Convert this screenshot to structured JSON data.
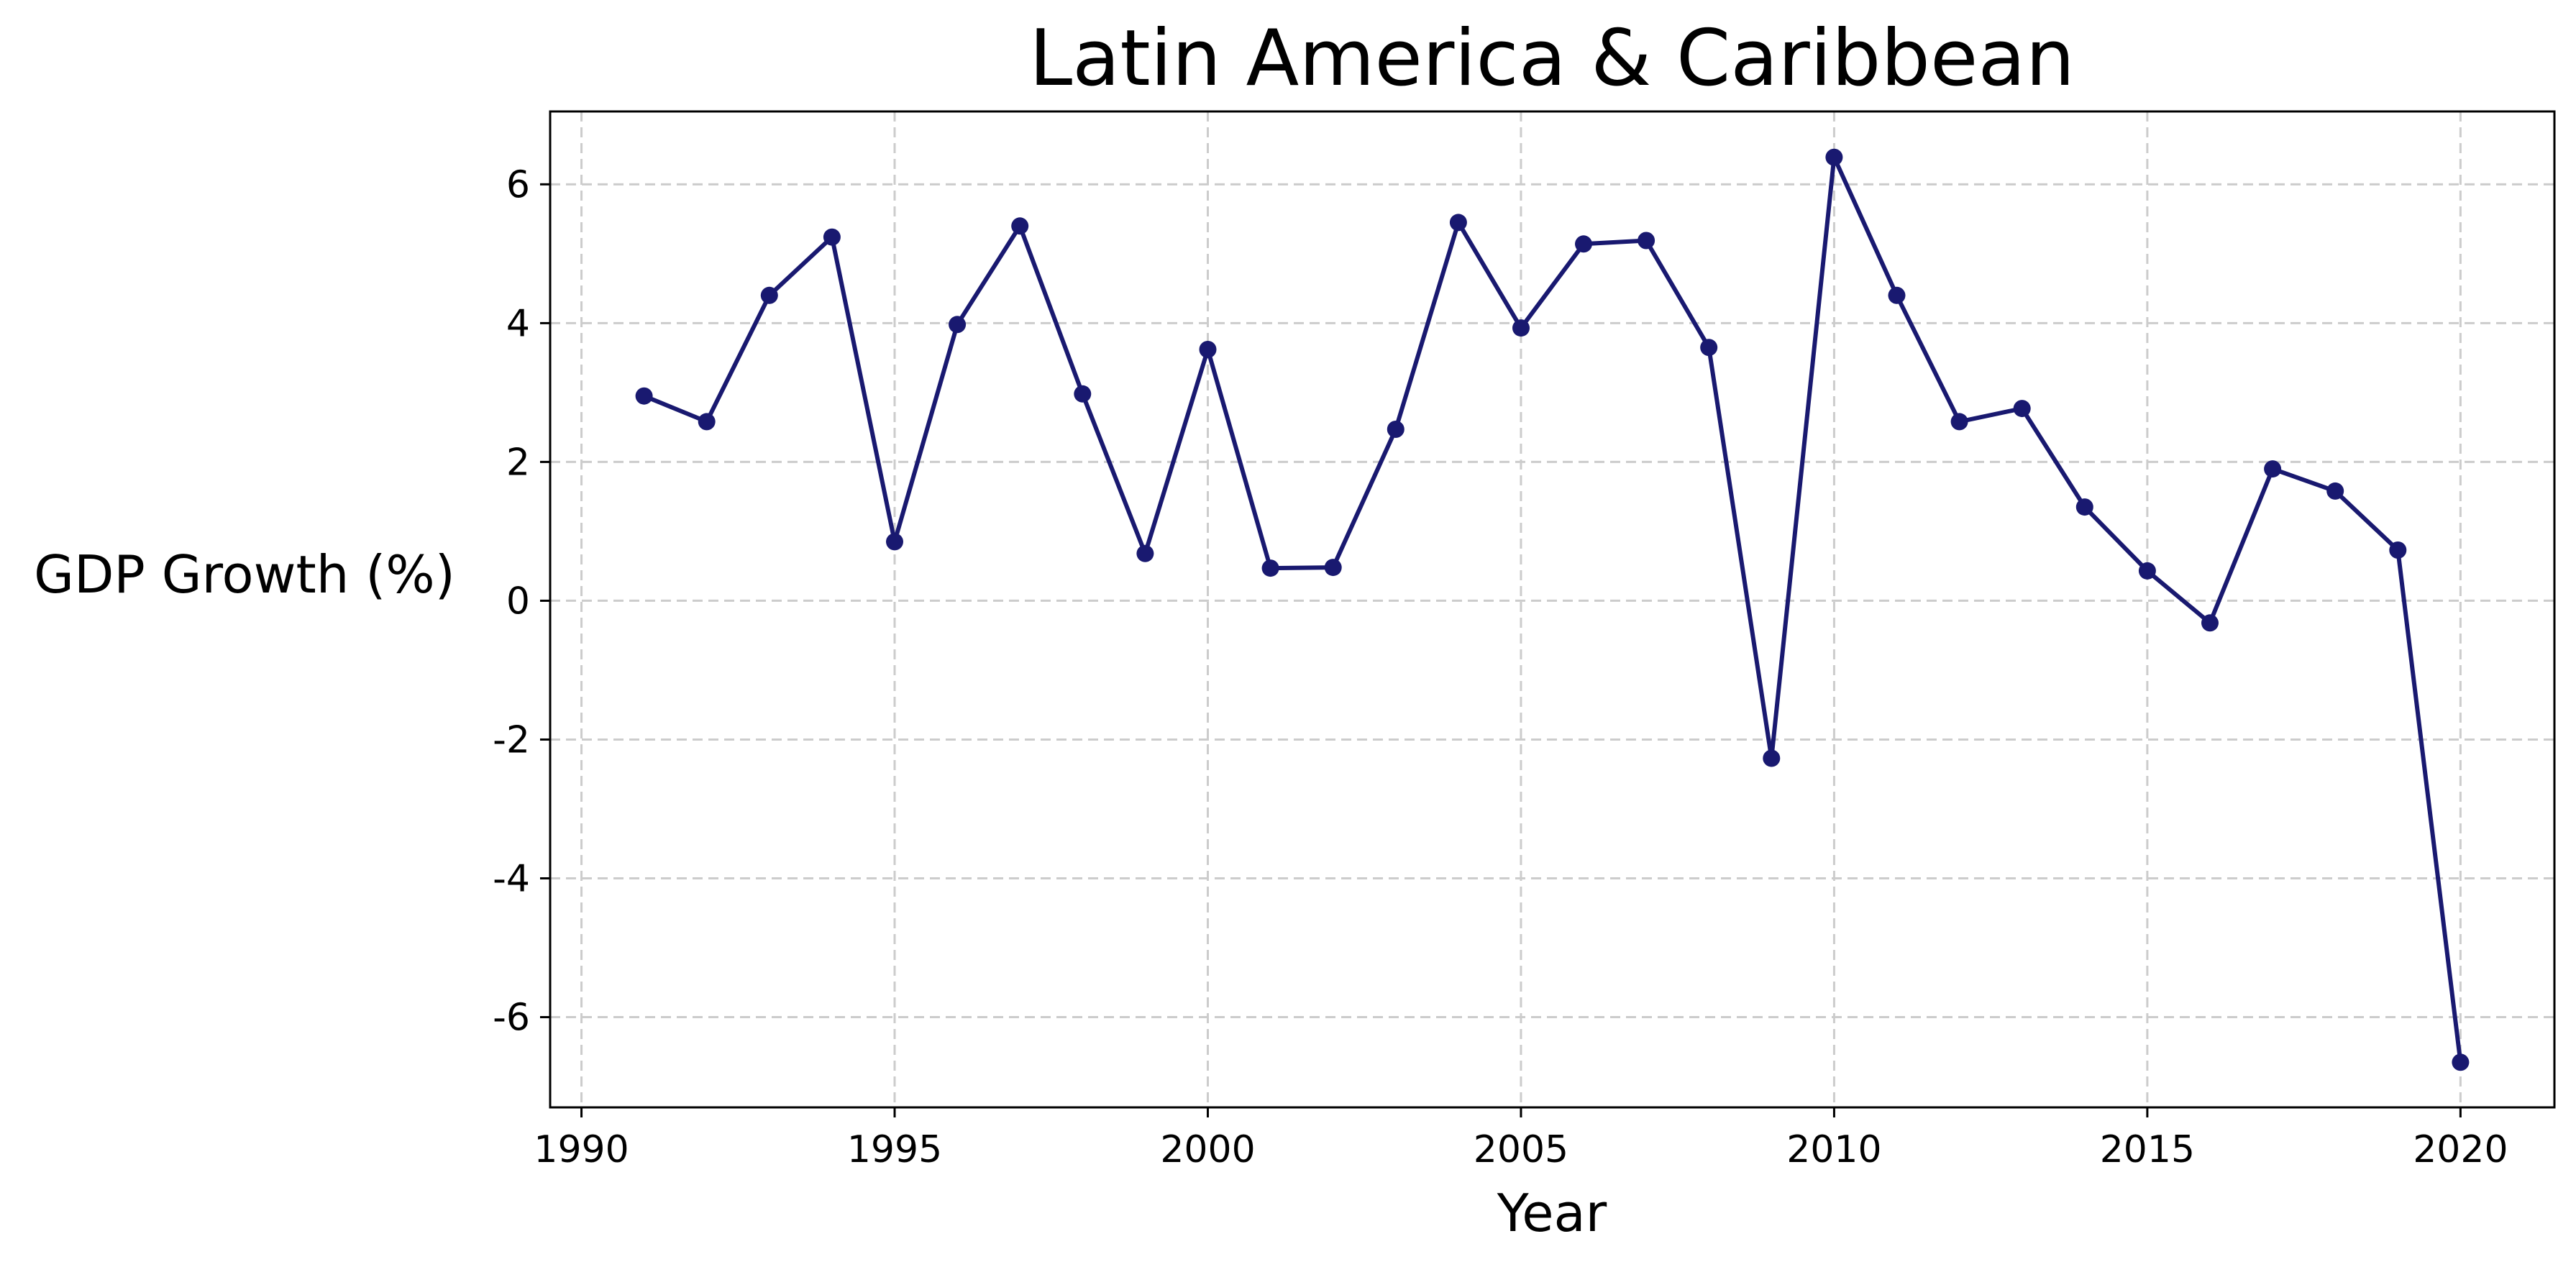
{
  "chart_data": {
    "type": "line",
    "title": "Latin America & Caribbean",
    "xlabel": "Year",
    "ylabel": "GDP Growth (%)",
    "xlim": [
      1989.5,
      2021.5
    ],
    "ylim": [
      -7.3,
      7.05
    ],
    "x_ticks": [
      1990,
      1995,
      2000,
      2005,
      2010,
      2015,
      2020
    ],
    "y_ticks": [
      -6,
      -4,
      -2,
      0,
      2,
      4,
      6
    ],
    "x_tick_labels": [
      "1990",
      "1995",
      "2000",
      "2005",
      "2010",
      "2015",
      "2020"
    ],
    "y_tick_labels": [
      "-6",
      "-4",
      "-2",
      "0",
      "2",
      "4",
      "6"
    ],
    "grid": true,
    "legend": "none",
    "series": [
      {
        "color": "#191970",
        "marker": "circle",
        "x": [
          1991,
          1992,
          1993,
          1994,
          1995,
          1996,
          1997,
          1998,
          1999,
          2000,
          2001,
          2002,
          2003,
          2004,
          2005,
          2006,
          2007,
          2008,
          2009,
          2010,
          2011,
          2012,
          2013,
          2014,
          2015,
          2016,
          2017,
          2018,
          2019,
          2020
        ],
        "y": [
          2.95,
          2.58,
          4.4,
          5.24,
          0.85,
          3.98,
          5.4,
          2.98,
          0.68,
          3.62,
          0.47,
          0.48,
          2.47,
          5.45,
          3.93,
          5.14,
          5.19,
          3.65,
          -2.27,
          6.39,
          4.4,
          2.58,
          2.77,
          1.35,
          0.43,
          -0.32,
          1.9,
          1.58,
          0.73,
          -6.65
        ]
      }
    ]
  }
}
